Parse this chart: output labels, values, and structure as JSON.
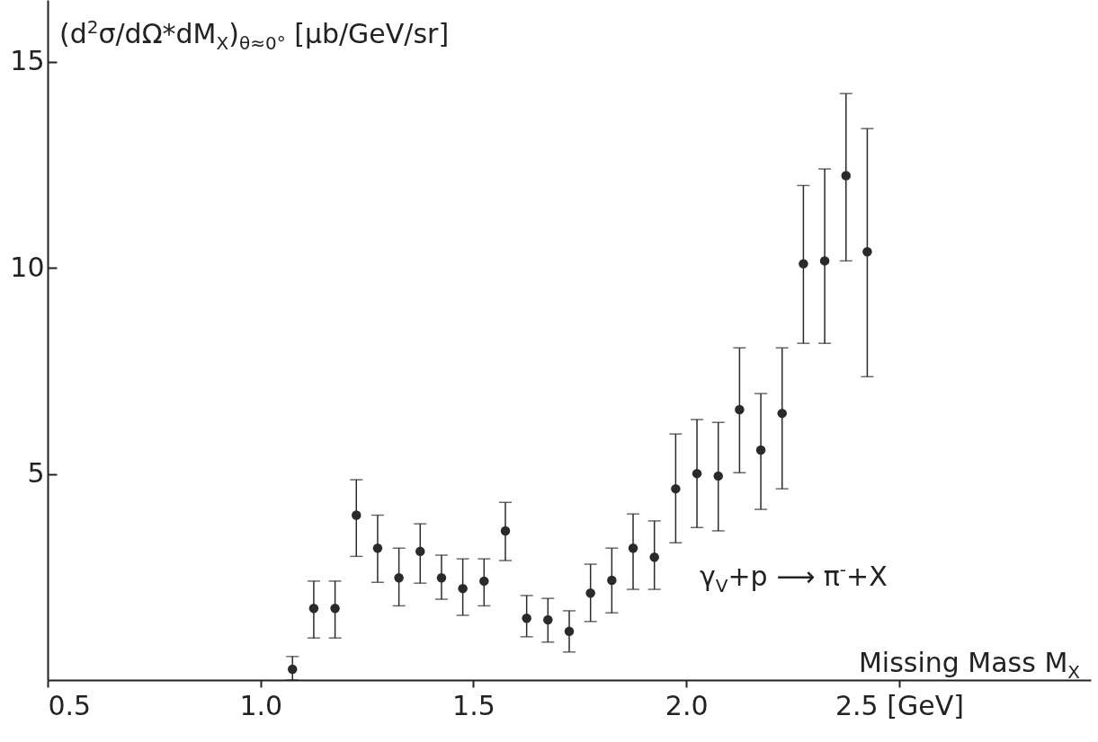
{
  "chart_data": {
    "type": "scatter",
    "ylabel": "(d$^{2}$σ/dΩ*dM$_{X}$)$_{θ≈0°}$ [μb/GeV/sr]",
    "xlabel": "Missing Mass M$_{X}$",
    "annotations": [
      "γ$_{V}$+p ⟶ π$^{-}$+X"
    ],
    "x": [
      1.075,
      1.125,
      1.175,
      1.225,
      1.275,
      1.325,
      1.375,
      1.425,
      1.475,
      1.525,
      1.575,
      1.625,
      1.675,
      1.725,
      1.775,
      1.825,
      1.875,
      1.925,
      1.975,
      2.025,
      2.075,
      2.125,
      2.175,
      2.225,
      2.275,
      2.325,
      2.375,
      2.425
    ],
    "values": [
      0.26,
      1.74,
      1.74,
      4.0,
      3.2,
      2.48,
      3.12,
      2.48,
      2.22,
      2.4,
      3.62,
      1.5,
      1.46,
      1.18,
      2.11,
      2.42,
      3.2,
      2.98,
      4.64,
      5.01,
      4.95,
      6.56,
      5.58,
      6.47,
      10.1,
      10.17,
      12.24,
      10.39
    ],
    "errors": [
      [
        0,
        0.57
      ],
      [
        1.02,
        2.4
      ],
      [
        1.02,
        2.4
      ],
      [
        3.0,
        4.86
      ],
      [
        2.37,
        4.0
      ],
      [
        1.8,
        3.2
      ],
      [
        2.35,
        3.79
      ],
      [
        1.96,
        3.03
      ],
      [
        1.57,
        2.94
      ],
      [
        1.8,
        2.94
      ],
      [
        2.9,
        4.31
      ],
      [
        1.05,
        2.05
      ],
      [
        0.92,
        1.98
      ],
      [
        0.68,
        1.68
      ],
      [
        1.42,
        2.81
      ],
      [
        1.63,
        3.2
      ],
      [
        2.2,
        4.03
      ],
      [
        2.2,
        3.86
      ],
      [
        3.33,
        5.97
      ],
      [
        3.7,
        6.32
      ],
      [
        3.62,
        6.25
      ],
      [
        5.03,
        8.06
      ],
      [
        4.14,
        6.95
      ],
      [
        4.64,
        8.06
      ],
      [
        8.17,
        12.0
      ],
      [
        8.17,
        12.4
      ],
      [
        10.17,
        14.23
      ],
      [
        7.36,
        13.38
      ]
    ],
    "color": "#2a2a2a",
    "marker": "circle",
    "xlim": [
      0.5,
      2.95
    ],
    "xticks": [
      0.5,
      {
        "value": 1,
        "label": "1.0"
      },
      1.5,
      {
        "value": 2,
        "label": "2.0"
      },
      {
        "value": 2.5,
        "label": "2.5 [GeV]"
      }
    ],
    "ylim": [
      0,
      16.5
    ],
    "yticks": [
      5,
      10,
      15
    ]
  }
}
